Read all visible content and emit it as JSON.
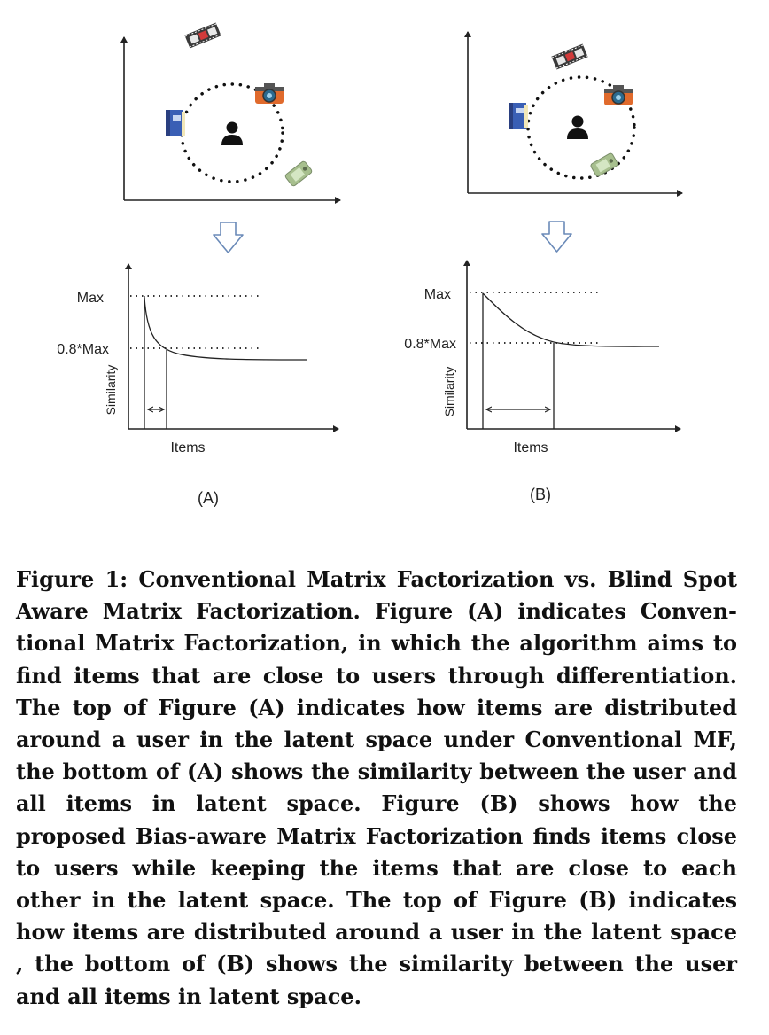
{
  "figure": {
    "panels": [
      {
        "panel_label": "(A)",
        "top_icons": [
          "film-strip-icon",
          "camera-icon",
          "book-icon",
          "user-icon",
          "phone-icon"
        ],
        "chart": {
          "max_label": "Max",
          "threshold_label": "0.8*Max",
          "ylabel": "Similarity",
          "xlabel": "Items"
        }
      },
      {
        "panel_label": "(B)",
        "top_icons": [
          "film-strip-icon",
          "camera-icon",
          "book-icon",
          "user-icon",
          "phone-icon"
        ],
        "chart": {
          "max_label": "Max",
          "threshold_label": "0.8*Max",
          "ylabel": "Similarity",
          "xlabel": "Items"
        }
      }
    ]
  },
  "caption": "Figure 1: Conventional Matrix Factorization vs. Blind Spot Aware Matrix Factorization. Figure (A) indicates Conven­tional Matrix Factorization, in which the algorithm aims to find items that are close to users through differentiation. The top of Figure (A) indicates how items are distributed around a user in the latent space under Conventional MF, the bottom of (A) shows the similarity between the user and all items in latent space. Figure (B) shows how the proposed Bias-aware Matrix Factorization finds items close to users while keeping the items that are close to each other in the latent space. The top of Figure (B) indicates how items are distributed around a user in the latent space , the bottom of (B) shows the similarity between the user and all items in latent space."
}
